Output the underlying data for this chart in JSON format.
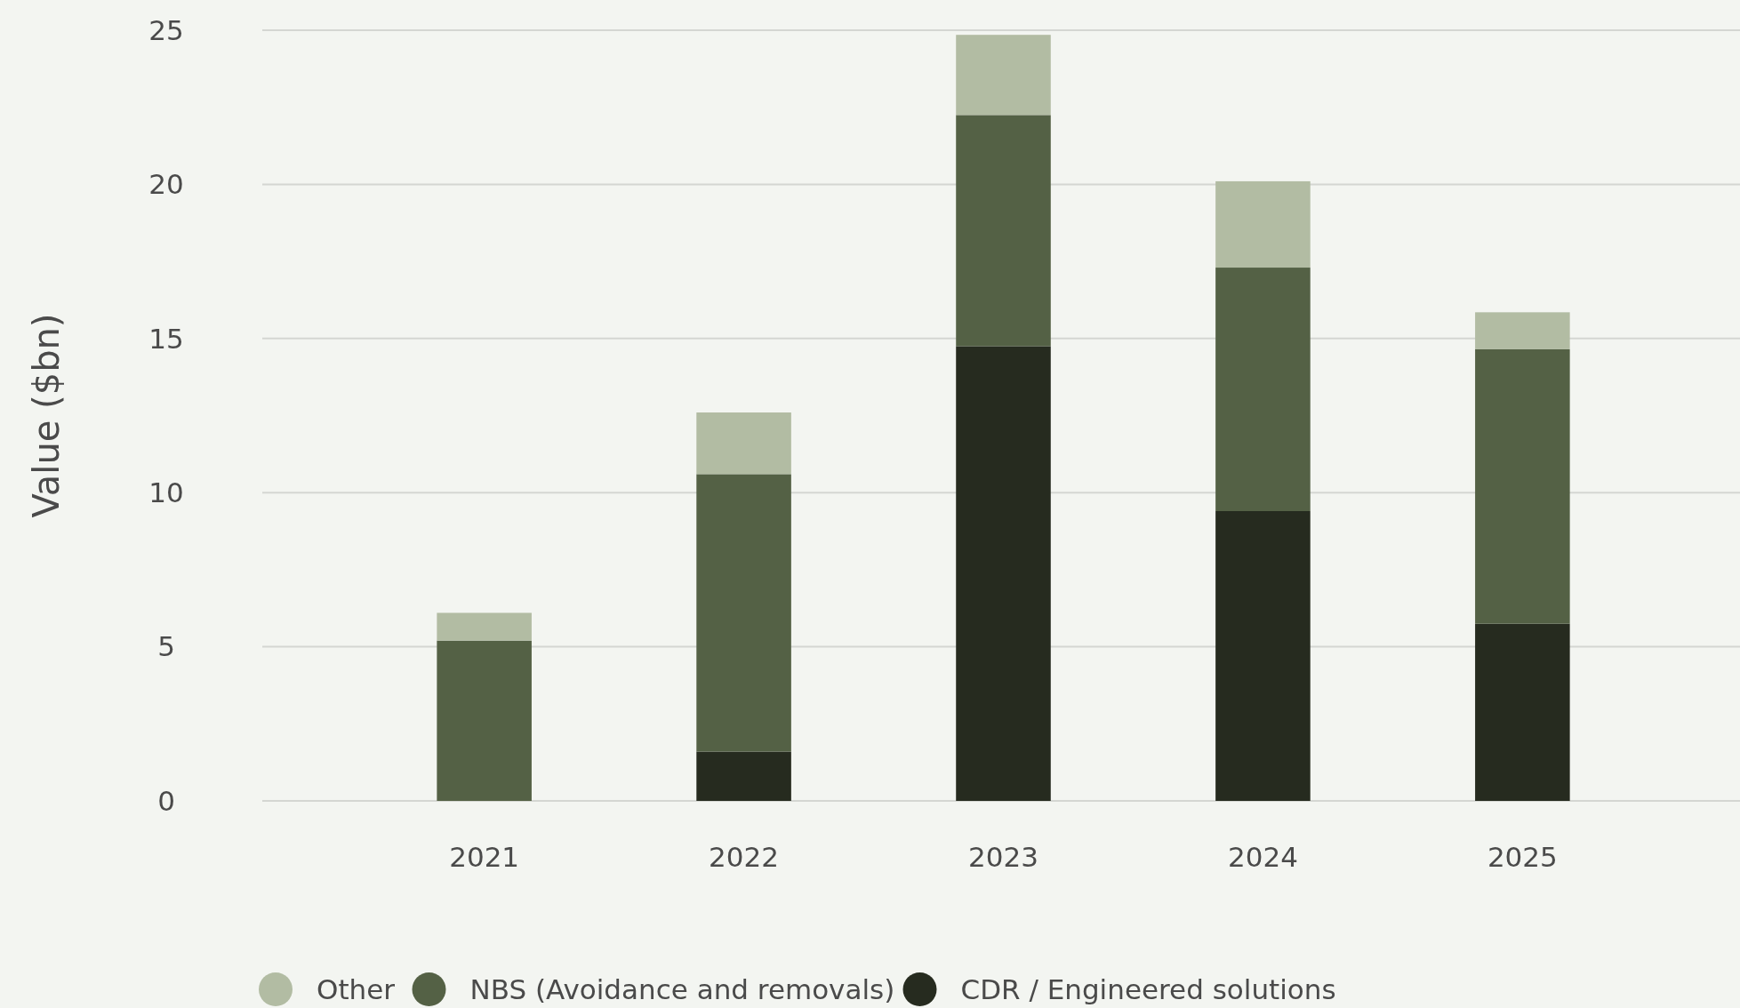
{
  "chart_data": {
    "type": "bar",
    "ylabel": "Value ($bn)",
    "categories": [
      "2021",
      "2022",
      "2023",
      "2024",
      "2025"
    ],
    "stacked": true,
    "ylim": [
      0,
      25
    ],
    "yticks": [
      0,
      5,
      10,
      15,
      20,
      25
    ],
    "grid": "y",
    "legend": "bottom",
    "series": [
      {
        "name": "CDR / Engineered solutions",
        "color": "#262b1f",
        "values": [
          0,
          1.6,
          14.75,
          9.4,
          5.75
        ]
      },
      {
        "name": "NBS (Avoidance and removals)",
        "color": "#546145",
        "values": [
          5.2,
          9.0,
          7.5,
          7.9,
          8.9
        ]
      },
      {
        "name": "Other",
        "color": "#b2bca3",
        "values": [
          0.9,
          2.0,
          2.6,
          2.8,
          1.2
        ]
      }
    ]
  }
}
